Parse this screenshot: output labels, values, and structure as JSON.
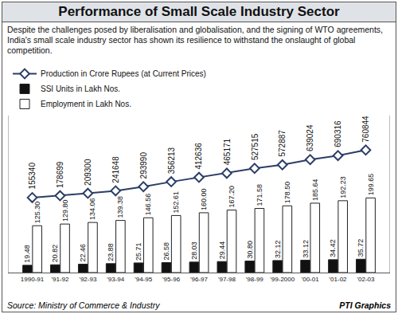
{
  "chart_data": {
    "type": "bar",
    "title": "Performance of Small Scale Industry Sector",
    "subtitle": "Despite the challenges posed by liberalisation and globalisation, and the signing of WTO agreements, India's small scale industry sector has shown its resilience to withstand the onslaught of global competition.",
    "source": "Source: Ministry of Commerce & Industry",
    "credit": "PTI Graphics",
    "categories": [
      "1990-91",
      "'91-92",
      "'92-93",
      "'93-94",
      "'94-95",
      "'95-96",
      "'96-97",
      "'97-98",
      "'98-99",
      "'99-2000",
      "'00-01",
      "'01-02",
      "'02-03"
    ],
    "series": [
      {
        "name": "Production in Crore Rupees (at Current Prices)",
        "type": "line",
        "axis": "y2",
        "color": "#2c3e66",
        "marker": "diamond",
        "line_style": "solid",
        "values": [
          155340,
          178699,
          209300,
          241648,
          293990,
          356213,
          412636,
          465171,
          527515,
          572887,
          639024,
          690316,
          760844
        ]
      },
      {
        "name": "SSI Units in Lakh Nos.",
        "type": "bar",
        "color": "#111111",
        "values": [
          19.48,
          20.82,
          22.46,
          23.88,
          25.71,
          26.58,
          28.03,
          29.44,
          30.8,
          32.12,
          33.12,
          34.42,
          35.72
        ],
        "value_labels": [
          "19.48",
          "20.82",
          "22.46",
          "23.88",
          "25.71",
          "26.58",
          "28.03",
          "29.44",
          "30.80",
          "32.12",
          "33.12",
          "34.42",
          "35.72"
        ]
      },
      {
        "name": "Employment in Lakh Nos.",
        "type": "bar",
        "color": "#ffffff",
        "values": [
          125.3,
          129.8,
          134.06,
          139.38,
          146.56,
          152.61,
          160,
          167.2,
          171.58,
          178.5,
          185.64,
          192.23,
          199.65
        ],
        "value_labels": [
          "125.30",
          "129.80",
          "134.06",
          "139.38",
          "146.56",
          "152.61",
          "160.00",
          "167.20",
          "171.58",
          "178.50",
          "185.64",
          "192.23",
          "199.65"
        ]
      }
    ],
    "ylim": [
      0,
      420
    ],
    "y2lim": [
      -800000,
      1200000
    ],
    "data_labels": true,
    "tick_labels": "x",
    "grid": false,
    "legend": "top-left"
  }
}
